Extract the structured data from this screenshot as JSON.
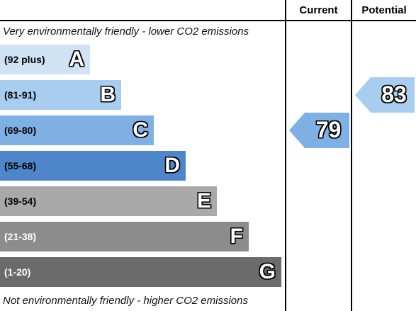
{
  "chart_data": {
    "type": "bar",
    "columns": {
      "current": "Current",
      "potential": "Potential"
    },
    "top_caption": "Very environmentally friendly - lower CO2 emissions",
    "bottom_caption": "Not environmentally friendly - higher CO2 emissions",
    "bands": [
      {
        "letter": "A",
        "range": "(92 plus)",
        "min": 92,
        "max": 100,
        "color": "#cfe3f5",
        "text_color": "#000000"
      },
      {
        "letter": "B",
        "range": "(81-91)",
        "min": 81,
        "max": 91,
        "color": "#a9cdef",
        "text_color": "#000000"
      },
      {
        "letter": "C",
        "range": "(69-80)",
        "min": 69,
        "max": 80,
        "color": "#7fb0e3",
        "text_color": "#000000"
      },
      {
        "letter": "D",
        "range": "(55-68)",
        "min": 55,
        "max": 68,
        "color": "#4f86c9",
        "text_color": "#000000"
      },
      {
        "letter": "E",
        "range": "(39-54)",
        "min": 39,
        "max": 54,
        "color": "#a9a9a9",
        "text_color": "#000000"
      },
      {
        "letter": "F",
        "range": "(21-38)",
        "min": 21,
        "max": 38,
        "color": "#8c8c8c",
        "text_color": "#ffffff"
      },
      {
        "letter": "G",
        "range": "(1-20)",
        "min": 1,
        "max": 20,
        "color": "#6b6b6b",
        "text_color": "#ffffff"
      }
    ],
    "ratings": {
      "current": {
        "value": 79,
        "band": "C",
        "color": "#7fb0e3"
      },
      "potential": {
        "value": 83,
        "band": "B",
        "color": "#a9cdef"
      }
    }
  }
}
